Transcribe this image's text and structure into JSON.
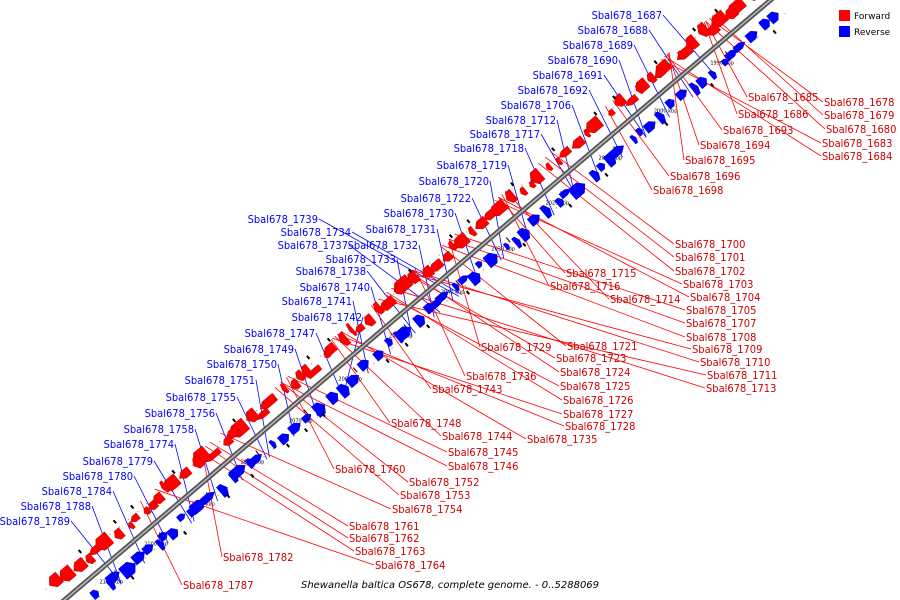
{
  "caption": "Shewanella baltica OS678, complete genome. - 0..5288069",
  "legend": {
    "forward": {
      "label": "Forward",
      "color": "#ff0000"
    },
    "reverse": {
      "label": "Reverse",
      "color": "#0000ff"
    }
  },
  "colors": {
    "forward": "#ff0000",
    "reverse": "#0000ff",
    "backbone": "#888888"
  },
  "ticks": [
    "1990 kbp",
    "2000 kbp",
    "2010 kbp",
    "2020 kbp",
    "2030 kbp",
    "2040 kbp",
    "2050 kbp",
    "2060 kbp",
    "2070 kbp",
    "2080 kbp",
    "2090 kbp",
    "2100 kbp",
    "2110 kbp"
  ],
  "reverse_labels": [
    "Sbal678_1687",
    "Sbal678_1688",
    "Sbal678_1689",
    "Sbal678_1690",
    "Sbal678_1691",
    "Sbal678_1692",
    "Sbal678_1706",
    "Sbal678_1712",
    "Sbal678_1717",
    "Sbal678_1718",
    "Sbal678_1719",
    "Sbal678_1720",
    "Sbal678_1722",
    "Sbal678_1730",
    "Sbal678_1731",
    "Sbal678_1739",
    "Sbal678_1734",
    "Sbal678_1737",
    "Sbal678_1732",
    "Sbal678_1733",
    "Sbal678_1738",
    "Sbal678_1740",
    "Sbal678_1741",
    "Sbal678_1742",
    "Sbal678_1747",
    "Sbal678_1749",
    "Sbal678_1750",
    "Sbal678_1751",
    "Sbal678_1755",
    "Sbal678_1756",
    "Sbal678_1758",
    "Sbal678_1774",
    "Sbal678_1779",
    "Sbal678_1780",
    "Sbal678_1784",
    "Sbal678_1788",
    "Sbal678_1789"
  ],
  "forward_labels": [
    "Sbal678_1685",
    "Sbal678_1678",
    "Sbal678_1686",
    "Sbal678_1679",
    "Sbal678_1680",
    "Sbal678_1693",
    "Sbal678_1683",
    "Sbal678_1694",
    "Sbal678_1684",
    "Sbal678_1695",
    "Sbal678_1696",
    "Sbal678_1698",
    "Sbal678_1700",
    "Sbal678_1701",
    "Sbal678_1702",
    "Sbal678_1715",
    "Sbal678_1703",
    "Sbal678_1716",
    "Sbal678_1704",
    "Sbal678_1714",
    "Sbal678_1705",
    "Sbal678_1707",
    "Sbal678_1708",
    "Sbal678_1721",
    "Sbal678_1729",
    "Sbal678_1709",
    "Sbal678_1723",
    "Sbal678_1710",
    "Sbal678_1724",
    "Sbal678_1736",
    "Sbal678_1711",
    "Sbal678_1743",
    "Sbal678_1725",
    "Sbal678_1713",
    "Sbal678_1726",
    "Sbal678_1727",
    "Sbal678_1748",
    "Sbal678_1728",
    "Sbal678_1744",
    "Sbal678_1735",
    "Sbal678_1745",
    "Sbal678_1746",
    "Sbal678_1760",
    "Sbal678_1752",
    "Sbal678_1753",
    "Sbal678_1754",
    "Sbal678_1761",
    "Sbal678_1762",
    "Sbal678_1763",
    "Sbal678_1782",
    "Sbal678_1764",
    "Sbal678_1787"
  ]
}
